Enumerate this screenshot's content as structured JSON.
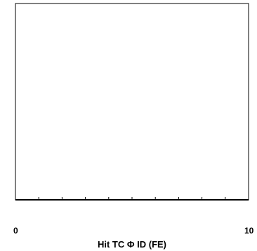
{
  "chart_data": {
    "type": "bar",
    "title": "",
    "xlabel": "Hit TC Φ ID (FE)",
    "ylabel": "",
    "xlim": [
      0,
      10
    ],
    "x_major_ticks": [
      0,
      10
    ],
    "x_tick_labels": [
      "0",
      "10"
    ],
    "x_minor_step": 1,
    "series": [],
    "grid": false,
    "legend": "none"
  },
  "colors": {
    "frame": "#000000",
    "background": "#ffffff"
  }
}
